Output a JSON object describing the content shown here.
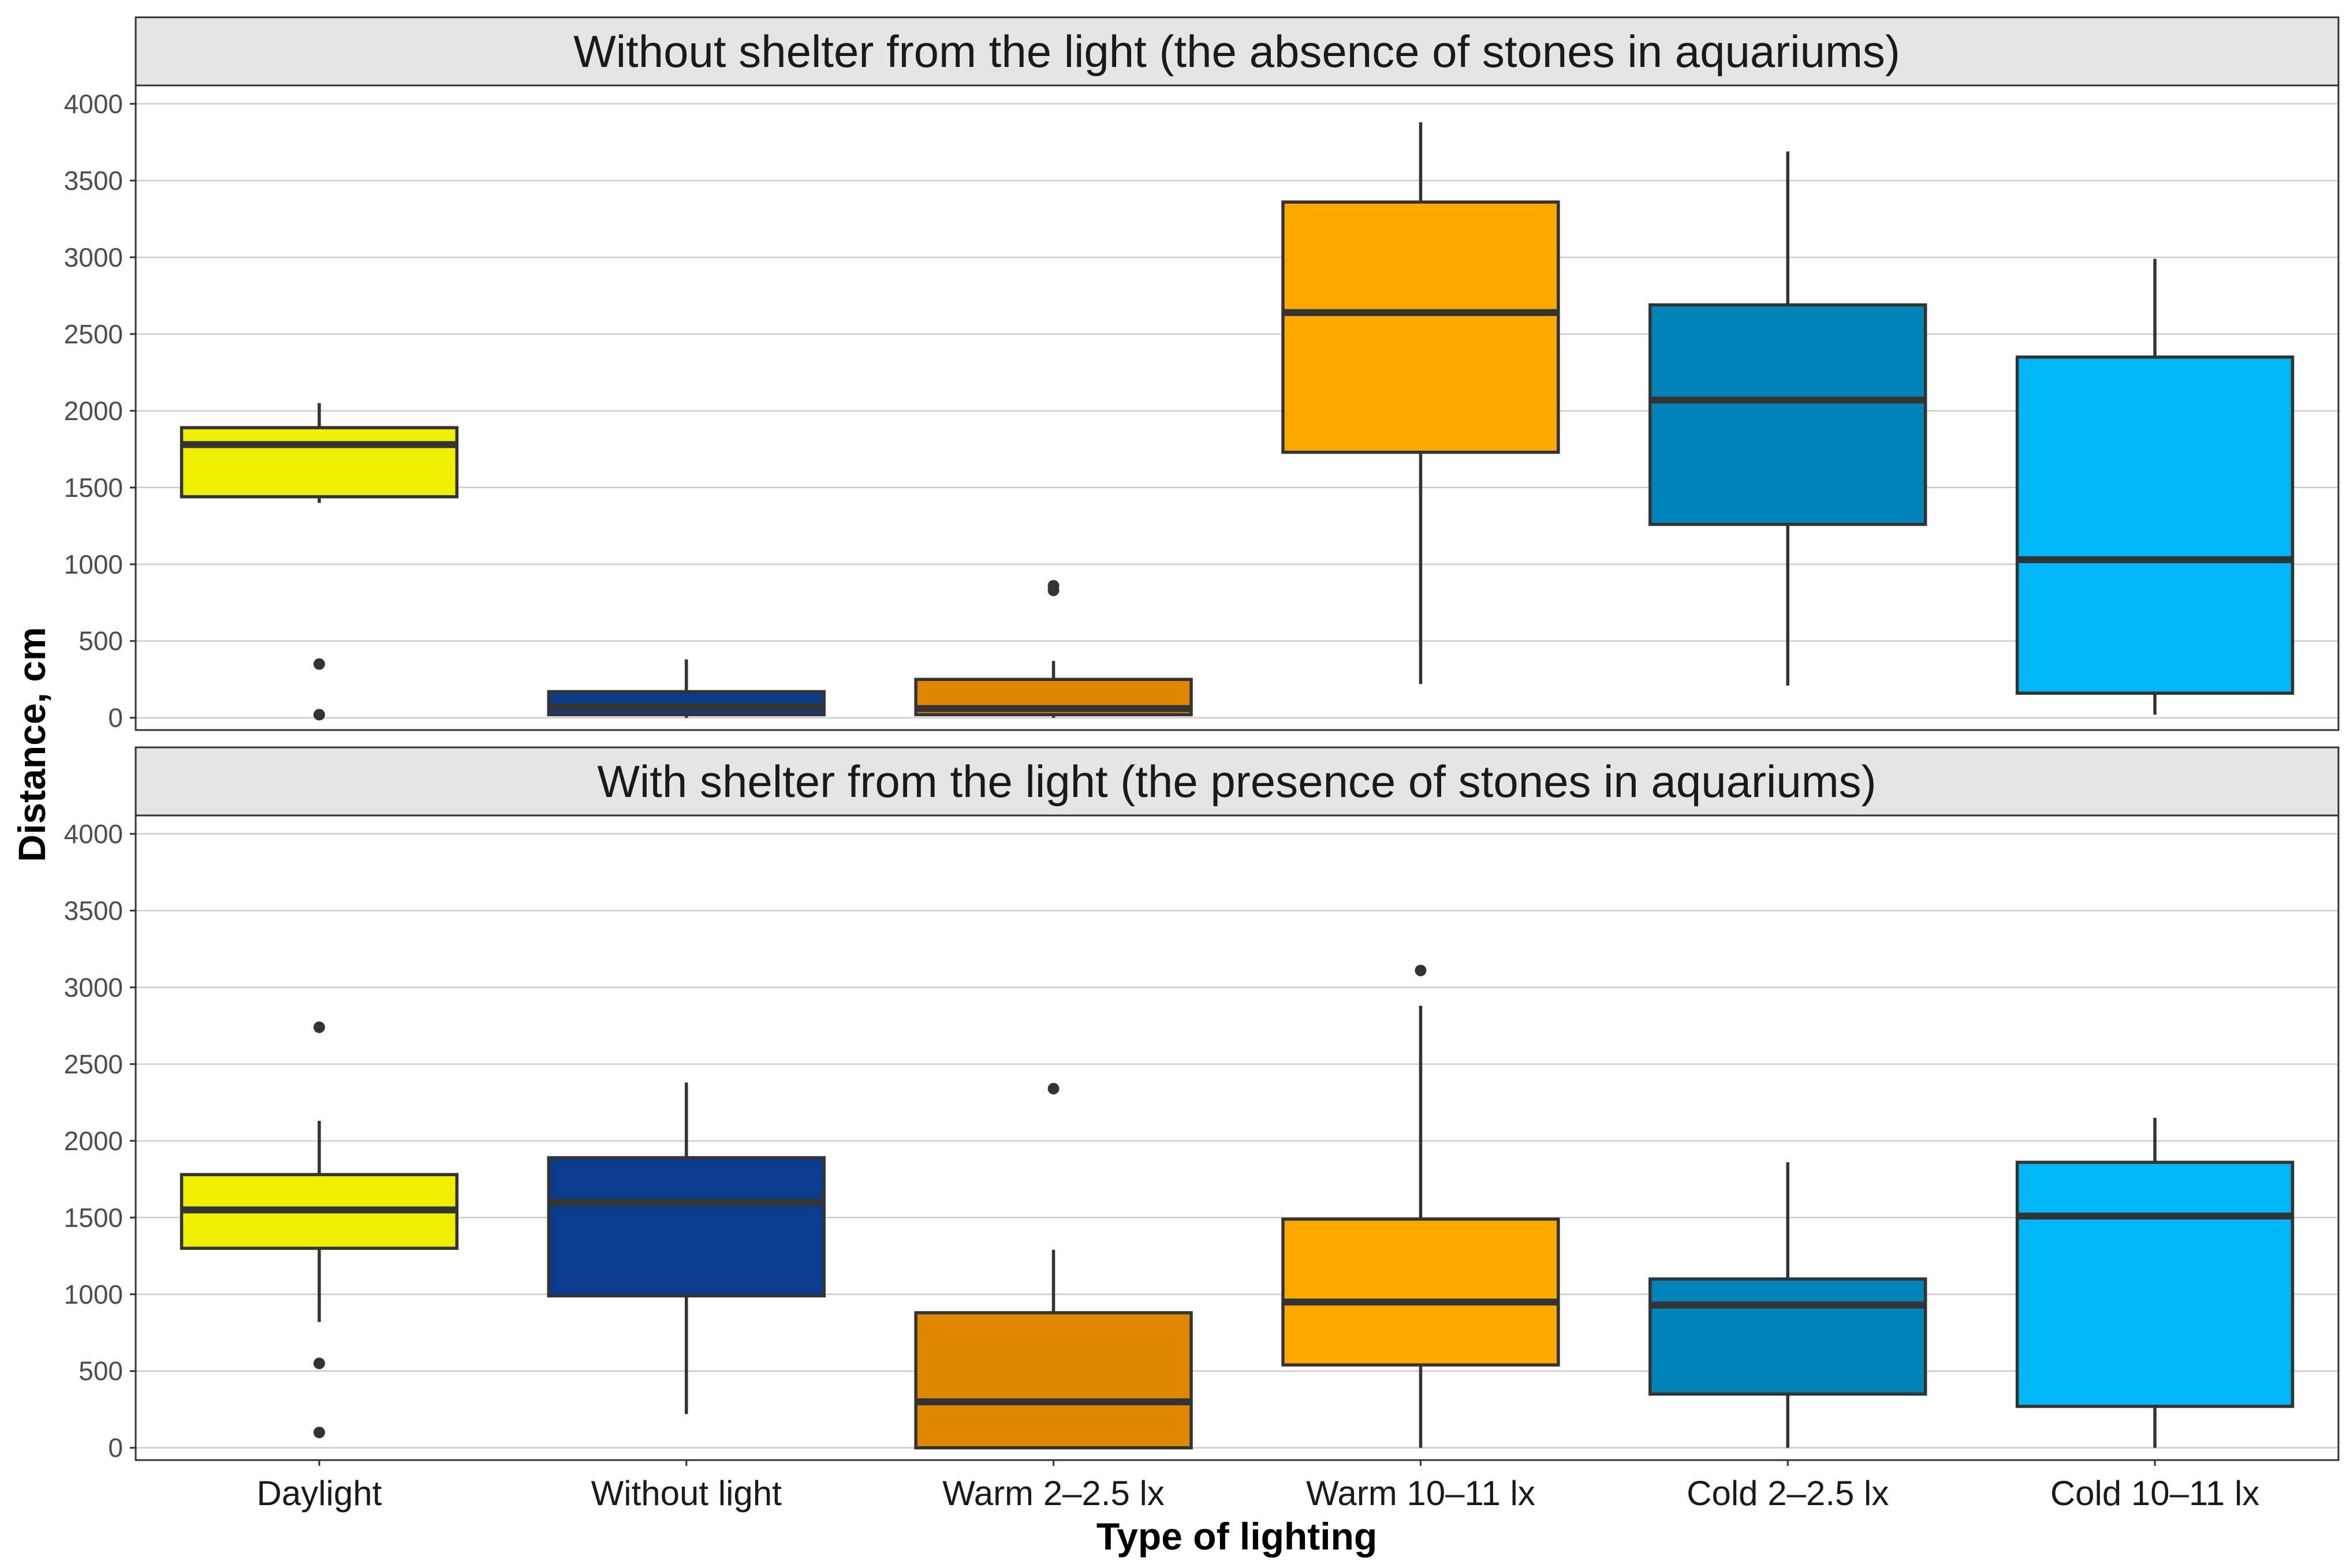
{
  "chart_data": {
    "type": "boxplot",
    "xlabel": "Type of lighting",
    "ylabel": "Distance, cm",
    "ylim": [
      -80,
      4120
    ],
    "yticks": [
      0,
      500,
      1000,
      1500,
      2000,
      2500,
      3000,
      3500,
      4000
    ],
    "grid": true,
    "categories": [
      "Daylight",
      "Without light",
      "Warm 2–2.5 lx",
      "Warm 10–11 lx",
      "Cold 2–2.5 lx",
      "Cold 10–11 lx"
    ],
    "colors": [
      "#EEF000",
      "#0B3C8C",
      "#E08700",
      "#FFA800",
      "#0083B8",
      "#00B8F8"
    ],
    "panels": [
      {
        "title": "Without shelter from the light (the absence of stones in aquariums)",
        "boxes": [
          {
            "category": "Daylight",
            "whisker_low": 1400,
            "q1": 1440,
            "median": 1780,
            "q3": 1890,
            "whisker_high": 2050,
            "outliers": [
              350,
              20
            ]
          },
          {
            "category": "Without light",
            "whisker_low": 0,
            "q1": 20,
            "median": 70,
            "q3": 170,
            "whisker_high": 380,
            "outliers": []
          },
          {
            "category": "Warm 2–2.5 lx",
            "whisker_low": 0,
            "q1": 20,
            "median": 60,
            "q3": 250,
            "whisker_high": 370,
            "outliers": [
              830,
              860
            ]
          },
          {
            "category": "Warm 10–11 lx",
            "whisker_low": 220,
            "q1": 1730,
            "median": 2640,
            "q3": 3360,
            "whisker_high": 3880,
            "outliers": []
          },
          {
            "category": "Cold 2–2.5 lx",
            "whisker_low": 210,
            "q1": 1260,
            "median": 2070,
            "q3": 2690,
            "whisker_high": 3690,
            "outliers": []
          },
          {
            "category": "Cold 10–11 lx",
            "whisker_low": 20,
            "q1": 160,
            "median": 1030,
            "q3": 2350,
            "whisker_high": 2990,
            "outliers": []
          }
        ]
      },
      {
        "title": "With shelter from the light (the presence of stones in aquariums)",
        "boxes": [
          {
            "category": "Daylight",
            "whisker_low": 820,
            "q1": 1300,
            "median": 1550,
            "q3": 1780,
            "whisker_high": 2130,
            "outliers": [
              2740,
              550,
              100
            ]
          },
          {
            "category": "Without light",
            "whisker_low": 220,
            "q1": 990,
            "median": 1600,
            "q3": 1890,
            "whisker_high": 2380,
            "outliers": []
          },
          {
            "category": "Warm 2–2.5 lx",
            "whisker_low": 0,
            "q1": 0,
            "median": 300,
            "q3": 880,
            "whisker_high": 1290,
            "outliers": [
              2340
            ]
          },
          {
            "category": "Warm 10–11 lx",
            "whisker_low": 0,
            "q1": 540,
            "median": 950,
            "q3": 1490,
            "whisker_high": 2880,
            "outliers": [
              3110
            ]
          },
          {
            "category": "Cold 2–2.5 lx",
            "whisker_low": 0,
            "q1": 350,
            "median": 930,
            "q3": 1100,
            "whisker_high": 1860,
            "outliers": []
          },
          {
            "category": "Cold 10–11 lx",
            "whisker_low": 0,
            "q1": 270,
            "median": 1510,
            "q3": 1860,
            "whisker_high": 2150,
            "outliers": []
          }
        ]
      }
    ]
  }
}
